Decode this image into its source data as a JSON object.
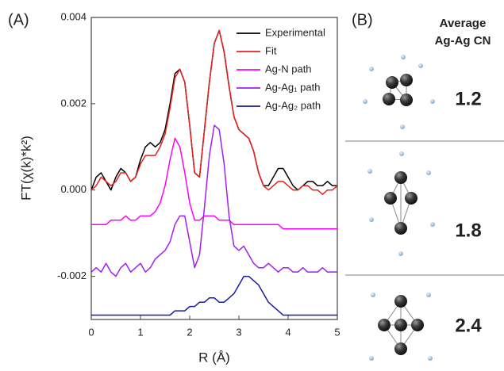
{
  "chart_data": {
    "type": "line",
    "label": "(A)",
    "xlabel": "R (Å)",
    "ylabel": "FT(χ(k)*k²)",
    "legend": "upper right",
    "xlim": [
      0,
      5
    ],
    "xticks": [
      0,
      1,
      2,
      3,
      4,
      5
    ],
    "ylim": [
      -0.003,
      0.004
    ],
    "yticks": [
      -0.002,
      {
        "value": 0,
        "label": "0.000"
      },
      0.002,
      0.004
    ],
    "x": [
      0,
      0.1,
      0.2,
      0.3,
      0.4,
      0.5,
      0.6,
      0.7,
      0.8,
      0.9,
      1,
      1.1,
      1.2,
      1.3,
      1.4,
      1.5,
      1.6,
      1.7,
      1.8,
      1.9,
      2,
      2.1,
      2.2,
      2.3,
      2.4,
      2.5,
      2.6,
      2.7,
      2.8,
      2.9,
      3,
      3.1,
      3.2,
      3.3,
      3.4,
      3.5,
      3.6,
      3.7,
      3.8,
      3.9,
      4,
      4.1,
      4.2,
      4.3,
      4.4,
      4.5,
      4.6,
      4.7,
      4.8,
      4.9,
      5
    ],
    "series": [
      {
        "name": "Experimental",
        "color": "#000000",
        "values": [
          0,
          0.0003,
          0.0004,
          0.0002,
          0,
          0.0003,
          0.0005,
          0.0004,
          0.0002,
          0.0003,
          0.0007,
          0.001,
          0.0011,
          0.001,
          0.0011,
          0.0014,
          0.002,
          0.0027,
          0.0028,
          0.0025,
          0.0015,
          0.0004,
          0.0003,
          0.0014,
          0.0025,
          0.0034,
          0.0037,
          0.0032,
          0.0024,
          0.0017,
          0.0014,
          0.0013,
          0.0012,
          0.0009,
          0.0004,
          0.0001,
          0.0001,
          0.0003,
          0.0005,
          0.0005,
          0.0003,
          0.0001,
          0,
          0.0001,
          0.0002,
          0.0002,
          0.0001,
          0.0001,
          0.0002,
          0.0001,
          0.0001
        ]
      },
      {
        "name": "Fit",
        "color": "#e8201e",
        "values": [
          0,
          0.0001,
          0.0003,
          0.0002,
          0.0001,
          0.0002,
          0.0004,
          0.0004,
          0.0002,
          0.0003,
          0.0006,
          0.0008,
          0.0008,
          0.0008,
          0.001,
          0.0013,
          0.0019,
          0.0026,
          0.0028,
          0.0025,
          0.0015,
          0.0004,
          0.0003,
          0.0014,
          0.0025,
          0.0034,
          0.0037,
          0.0032,
          0.0024,
          0.0017,
          0.0014,
          0.0013,
          0.0012,
          0.0009,
          0.0004,
          0.0001,
          0,
          0.0001,
          0.0002,
          0.0002,
          0.0001,
          0,
          0,
          0.0001,
          0.0001,
          0,
          0,
          -0.0001,
          0,
          0,
          0.0001
        ]
      },
      {
        "name": "Ag-N path",
        "color": "#ff00ff",
        "values": [
          -0.0008,
          -0.0008,
          -0.0008,
          -0.0008,
          -0.0007,
          -0.0007,
          -0.0007,
          -0.0006,
          -0.0007,
          -0.0007,
          -0.0006,
          -0.0006,
          -0.0006,
          -0.0005,
          -0.0003,
          0.0001,
          0.0007,
          0.0012,
          0.001,
          0.0004,
          -0.0003,
          -0.0007,
          -0.0007,
          -0.0006,
          -0.0006,
          -0.0006,
          -0.0007,
          -0.0007,
          -0.0007,
          -0.0008,
          -0.0008,
          -0.0008,
          -0.0008,
          -0.0008,
          -0.0008,
          -0.0008,
          -0.0008,
          -0.0008,
          -0.0008,
          -0.0009,
          -0.0009,
          -0.0009,
          -0.0009,
          -0.0009,
          -0.0009,
          -0.0009,
          -0.0009,
          -0.0009,
          -0.0009,
          -0.0009,
          -0.0009
        ]
      },
      {
        "name": "Ag-Ag₁ path",
        "color": "#a020f0",
        "values": [
          -0.0019,
          -0.0018,
          -0.0019,
          -0.0017,
          -0.0019,
          -0.002,
          -0.0018,
          -0.0017,
          -0.0019,
          -0.0018,
          -0.0017,
          -0.0019,
          -0.0018,
          -0.0016,
          -0.0015,
          -0.0014,
          -0.0012,
          -0.0008,
          -0.0006,
          -0.0006,
          -0.0012,
          -0.0018,
          -0.0015,
          -0.0004,
          0.0008,
          0.0015,
          0.0014,
          0.0006,
          -0.0006,
          -0.0013,
          -0.0014,
          -0.0013,
          -0.0015,
          -0.0017,
          -0.0018,
          -0.0018,
          -0.0017,
          -0.0018,
          -0.0019,
          -0.0018,
          -0.0018,
          -0.0019,
          -0.0019,
          -0.0018,
          -0.0019,
          -0.0019,
          -0.0019,
          -0.0018,
          -0.0019,
          -0.0019,
          -0.0019
        ]
      },
      {
        "name": "Ag-Ag₂ path",
        "color": "#1a1aa8",
        "values": [
          -0.0029,
          -0.0029,
          -0.0029,
          -0.0029,
          -0.0029,
          -0.0029,
          -0.0029,
          -0.0029,
          -0.0029,
          -0.0029,
          -0.0029,
          -0.0029,
          -0.0029,
          -0.0029,
          -0.0029,
          -0.0029,
          -0.0029,
          -0.0028,
          -0.0028,
          -0.0028,
          -0.0027,
          -0.0027,
          -0.0026,
          -0.0026,
          -0.0025,
          -0.0025,
          -0.0026,
          -0.0026,
          -0.0025,
          -0.0024,
          -0.0022,
          -0.002,
          -0.002,
          -0.0021,
          -0.0022,
          -0.0024,
          -0.0026,
          -0.0027,
          -0.0028,
          -0.0029,
          -0.0029,
          -0.0029,
          -0.0029,
          -0.0029,
          -0.0029,
          -0.0029,
          -0.0029,
          -0.0029,
          -0.0029,
          -0.0029,
          -0.0029
        ]
      }
    ]
  },
  "panel_b": {
    "label": "(B)",
    "title": [
      "Average",
      "Ag-Ag CN"
    ],
    "rows": [
      1.2,
      1.8,
      2.4
    ]
  }
}
